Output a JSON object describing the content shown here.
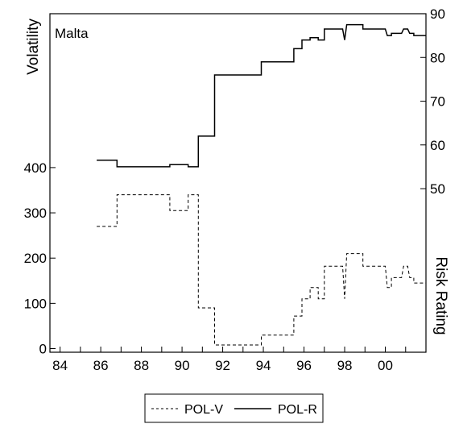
{
  "chart_data": {
    "type": "line",
    "panel_label": "Malta",
    "y_left_label": "Volatility",
    "y_right_label": "Risk Rating",
    "x_ticks": [
      "84",
      "86",
      "88",
      "90",
      "92",
      "94",
      "96",
      "98",
      "00"
    ],
    "x_range": [
      1983.5,
      2002.0
    ],
    "y_left_ticks": [
      "0",
      "100",
      "200",
      "300",
      "400"
    ],
    "y_left_range": [
      -8,
      740
    ],
    "y_right_ticks": [
      "50",
      "60",
      "70",
      "80",
      "90"
    ],
    "y_right_range": [
      12.6,
      90
    ],
    "series": [
      {
        "name": "POL-V",
        "axis": "left",
        "style": "dashed",
        "color": "#000000",
        "points": [
          [
            1985.8,
            270
          ],
          [
            1986.8,
            270
          ],
          [
            1986.8,
            340
          ],
          [
            1989.4,
            340
          ],
          [
            1989.4,
            305
          ],
          [
            1990.3,
            305
          ],
          [
            1990.3,
            340
          ],
          [
            1990.8,
            340
          ],
          [
            1990.8,
            90
          ],
          [
            1991.6,
            90
          ],
          [
            1991.6,
            8
          ],
          [
            1993.9,
            8
          ],
          [
            1993.9,
            30
          ],
          [
            1995.5,
            30
          ],
          [
            1995.5,
            72
          ],
          [
            1995.9,
            72
          ],
          [
            1995.9,
            110
          ],
          [
            1996.3,
            110
          ],
          [
            1996.3,
            135
          ],
          [
            1996.7,
            135
          ],
          [
            1996.7,
            110
          ],
          [
            1997.0,
            110
          ],
          [
            1997.0,
            182
          ],
          [
            1997.9,
            182
          ],
          [
            1998.0,
            110
          ],
          [
            1998.1,
            210
          ],
          [
            1998.9,
            210
          ],
          [
            1998.9,
            182
          ],
          [
            2000.0,
            182
          ],
          [
            2000.1,
            135
          ],
          [
            2000.3,
            135
          ],
          [
            2000.3,
            157
          ],
          [
            2000.8,
            157
          ],
          [
            2000.9,
            182
          ],
          [
            2001.1,
            182
          ],
          [
            2001.2,
            157
          ],
          [
            2001.4,
            157
          ],
          [
            2001.4,
            145
          ],
          [
            2002.0,
            145
          ]
        ]
      },
      {
        "name": "POL-R",
        "axis": "right",
        "style": "solid",
        "color": "#000000",
        "points": [
          [
            1985.8,
            56.5
          ],
          [
            1986.8,
            56.5
          ],
          [
            1986.8,
            55.0
          ],
          [
            1989.4,
            55.0
          ],
          [
            1989.4,
            55.5
          ],
          [
            1990.3,
            55.5
          ],
          [
            1990.3,
            55.0
          ],
          [
            1990.8,
            55.0
          ],
          [
            1990.8,
            62.0
          ],
          [
            1991.6,
            62.0
          ],
          [
            1991.6,
            76.0
          ],
          [
            1993.9,
            76.0
          ],
          [
            1993.9,
            79.0
          ],
          [
            1995.5,
            79.0
          ],
          [
            1995.5,
            82.0
          ],
          [
            1995.9,
            82.0
          ],
          [
            1995.9,
            84.0
          ],
          [
            1996.3,
            84.0
          ],
          [
            1996.3,
            84.5
          ],
          [
            1996.7,
            84.5
          ],
          [
            1996.7,
            84.0
          ],
          [
            1997.0,
            84.0
          ],
          [
            1997.0,
            86.5
          ],
          [
            1997.9,
            86.5
          ],
          [
            1998.0,
            84.0
          ],
          [
            1998.1,
            87.5
          ],
          [
            1998.9,
            87.5
          ],
          [
            1998.9,
            86.5
          ],
          [
            2000.0,
            86.5
          ],
          [
            2000.1,
            85.0
          ],
          [
            2000.3,
            85.0
          ],
          [
            2000.3,
            85.5
          ],
          [
            2000.8,
            85.5
          ],
          [
            2000.9,
            86.5
          ],
          [
            2001.1,
            86.5
          ],
          [
            2001.2,
            85.5
          ],
          [
            2001.4,
            85.5
          ],
          [
            2001.4,
            85.0
          ],
          [
            2002.0,
            85.0
          ]
        ]
      }
    ],
    "legend": {
      "placement": "bottom-center",
      "entries": [
        "POL-V",
        "POL-R"
      ]
    },
    "grid": false
  }
}
